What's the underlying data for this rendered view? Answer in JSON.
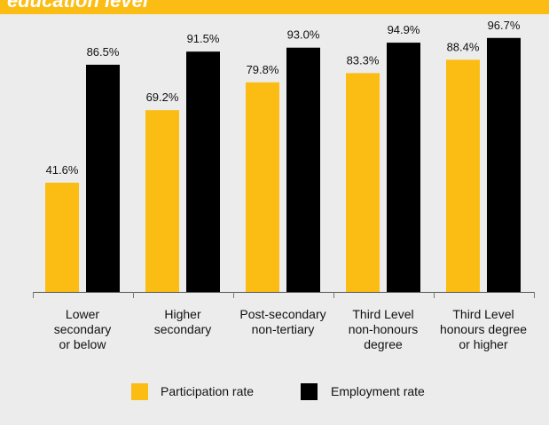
{
  "header": {
    "title": "education level"
  },
  "colors": {
    "header_bar": "#fbbc14",
    "participation": "#fbbc14",
    "employment": "#000000",
    "background": "#ececec"
  },
  "chart_data": {
    "type": "bar",
    "categories": [
      "Lower secondary or below",
      "Higher secondary",
      "Post-secondary non-tertiary",
      "Third Level non-honours degree",
      "Third Level honours degree or higher"
    ],
    "category_label_lines": [
      [
        "Lower",
        "secondary",
        "or below"
      ],
      [
        "Higher",
        "secondary"
      ],
      [
        "Post-secondary",
        "non-tertiary"
      ],
      [
        "Third Level",
        "non-honours",
        "degree"
      ],
      [
        "Third Level",
        "honours degree",
        "or higher"
      ]
    ],
    "series": [
      {
        "name": "Participation rate",
        "values": [
          41.6,
          69.2,
          79.8,
          83.3,
          88.4
        ],
        "labels": [
          "41.6%",
          "69.2%",
          "79.8%",
          "83.3%",
          "88.4%"
        ]
      },
      {
        "name": "Employment rate",
        "values": [
          86.5,
          91.5,
          93.0,
          94.9,
          96.7
        ],
        "labels": [
          "86.5%",
          "91.5%",
          "93.0%",
          "94.9%",
          "96.7%"
        ]
      }
    ],
    "ylim": [
      0,
      100
    ],
    "grid": false,
    "legend_position": "bottom"
  }
}
